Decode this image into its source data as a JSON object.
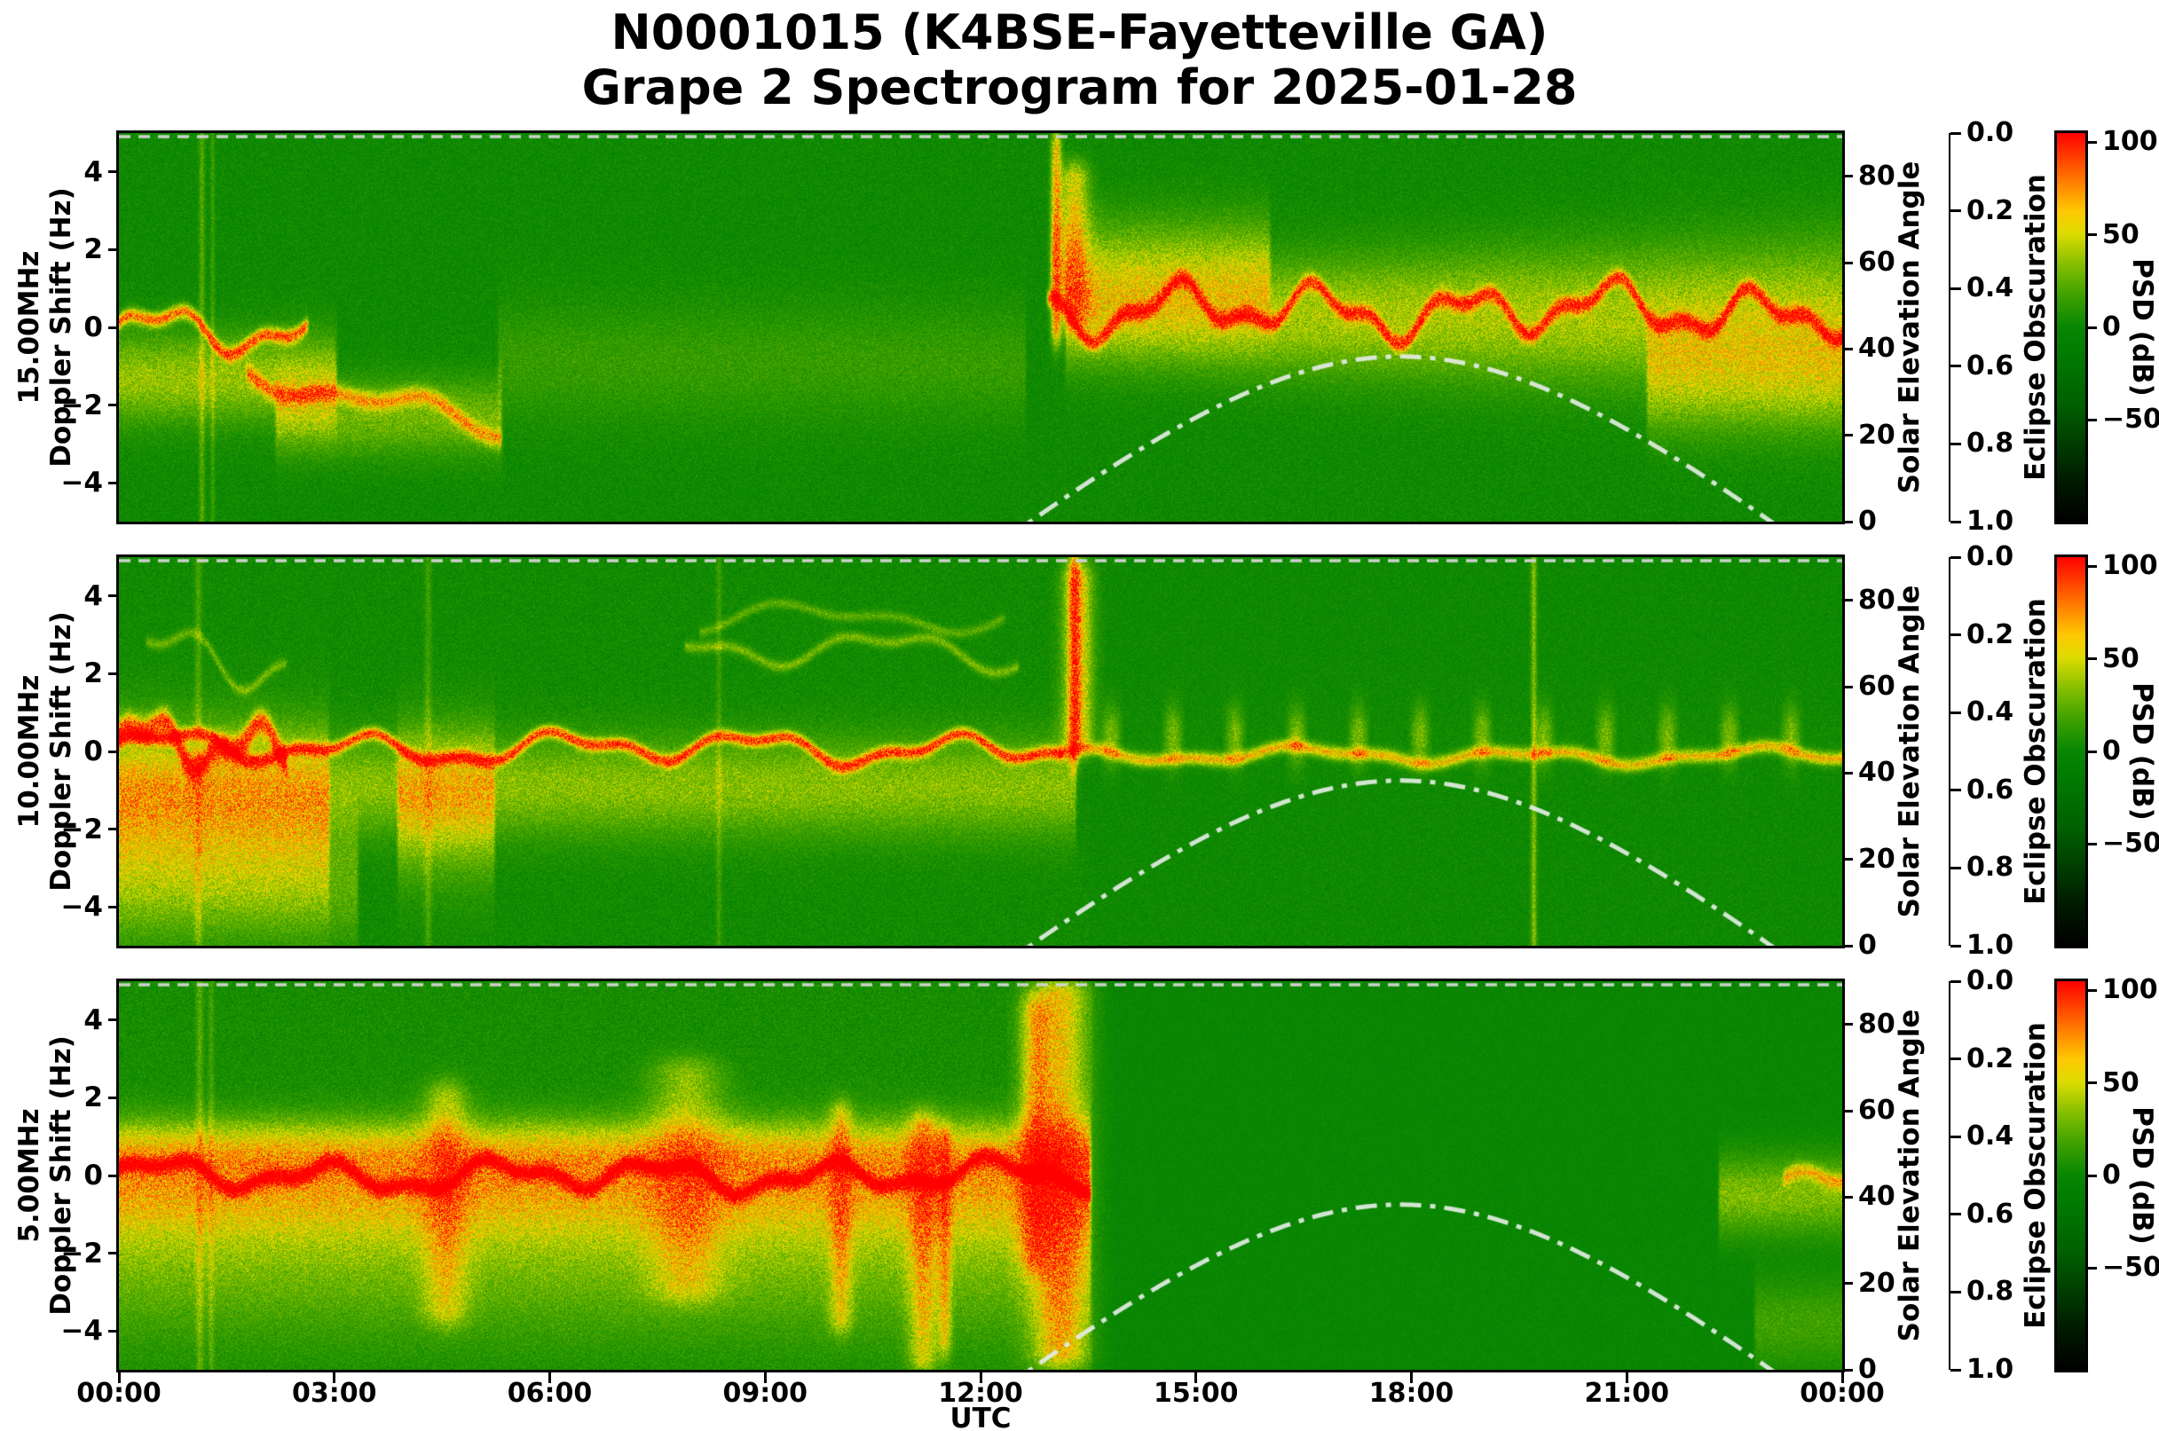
{
  "title": {
    "line1": "N0001015 (K4BSE-Fayetteville GA)",
    "line2": "Grape 2 Spectrogram for 2025-01-28"
  },
  "axes": {
    "x_label": "UTC",
    "x_tick_labels": [
      "00:00",
      "03:00",
      "06:00",
      "09:00",
      "12:00",
      "15:00",
      "18:00",
      "21:00",
      "00:00"
    ],
    "x_tick_hours": [
      0,
      3,
      6,
      9,
      12,
      15,
      18,
      21,
      24
    ],
    "doppler_tick_labels": [
      "4",
      "2",
      "0",
      "−2",
      "−4"
    ],
    "doppler_tick_values": [
      4,
      2,
      0,
      -2,
      -4
    ],
    "doppler_range_hz": [
      -5,
      5
    ],
    "solar_axis_label": "Solar Elevation Angle",
    "solar_tick_labels": [
      "0",
      "20",
      "40",
      "60",
      "80"
    ],
    "solar_tick_values": [
      0,
      20,
      40,
      60,
      80
    ],
    "solar_axis_range": [
      0,
      90
    ],
    "eclipse_axis_label": "Eclipse Obscuration",
    "eclipse_tick_labels": [
      "0.0",
      "0.2",
      "0.4",
      "0.6",
      "0.8",
      "1.0"
    ],
    "eclipse_axis_range": [
      0,
      1
    ],
    "colorbar_label": "PSD (dB)",
    "colorbar_tick_labels": [
      "100",
      "50",
      "0",
      "−50"
    ],
    "colorbar_tick_values": [
      100,
      50,
      0,
      -50
    ],
    "colorbar_range_db": [
      -105,
      105
    ]
  },
  "colors": {
    "background": "#ffffff",
    "axis": "#000000",
    "solar_curve": "rgba(226,236,226,0.93)",
    "eclipse_curve": "rgba(214,214,214,0.95)",
    "colormap_stops": [
      [
        0.0,
        "#000000"
      ],
      [
        0.1,
        "#001900"
      ],
      [
        0.2,
        "#003c00"
      ],
      [
        0.3,
        "#005f00"
      ],
      [
        0.42,
        "#007800"
      ],
      [
        0.5,
        "#088603"
      ],
      [
        0.58,
        "#3ca000"
      ],
      [
        0.66,
        "#82be00"
      ],
      [
        0.74,
        "#dcdc00"
      ],
      [
        0.8,
        "#ffc800"
      ],
      [
        0.87,
        "#ff8200"
      ],
      [
        0.94,
        "#ff3c00"
      ],
      [
        1.0,
        "#ff0000"
      ]
    ]
  },
  "chart_data": {
    "type": "heatmap",
    "title": "N0001015 (K4BSE-Fayetteville GA) Grape 2 Spectrogram for 2025-01-28",
    "xlabel": "UTC",
    "x_range_hours": [
      0,
      24
    ],
    "x_tick_labels": [
      "00:00",
      "03:00",
      "06:00",
      "09:00",
      "12:00",
      "15:00",
      "18:00",
      "21:00",
      "00:00"
    ],
    "colorbar": {
      "label": "PSD (dB)",
      "range_db": [
        -105,
        105
      ],
      "ticks": [
        100,
        50,
        0,
        -50
      ]
    },
    "solar_elevation": {
      "axis_label": "Solar Elevation Angle",
      "axis_range_deg": [
        0,
        90
      ],
      "style": "dash-dot",
      "peak_elevation_deg": 38,
      "peak_time_utc": 17.85,
      "rise_above_horizon_utc": 12.7,
      "set_below_horizon_utc": 23.0,
      "model": {
        "latitude_deg": 33.45,
        "solar_declination_deg": -18.3
      }
    },
    "eclipse_obscuration": {
      "axis_label": "Eclipse Obscuration",
      "axis_range": [
        0,
        1
      ],
      "value_all_day": 0.0,
      "style": "dashed-line-at-zero"
    },
    "panels": [
      {
        "id": "15mhz",
        "frequency_label": "15.00MHz",
        "ylabel": "Doppler Shift (Hz)",
        "ylim_hz": [
          -5,
          5
        ],
        "seed": 11,
        "background_psd_db": {
          "floor": 2,
          "speckle": 16
        },
        "description": "Night trace near 0 Hz drifting to -2.5 Hz from 00:00-05:00; quiet 05:00-12:30; sharp return ~13:00 with burst to +4 Hz, then persistent wavy carrier near +0.5 Hz with sidebands until 24:00.",
        "events": [
          {
            "kind": "carrier",
            "t": [
              0,
              2.6
            ],
            "f": -0.15,
            "wamp": 0.45,
            "wfreq": 2.8,
            "width": 0.13,
            "psd": 78
          },
          {
            "kind": "diffuse",
            "t": [
              0,
              3.0
            ],
            "f": -1.3,
            "width": 0.8,
            "psd": 36
          },
          {
            "kind": "carrier",
            "t": [
              1.8,
              5.3
            ],
            "f": -1.2,
            "drift": -0.38,
            "wamp": 0.3,
            "wfreq": 1.9,
            "width": 0.16,
            "psd": 50
          },
          {
            "kind": "diffuse",
            "t": [
              2.2,
              5.3
            ],
            "f": -2.3,
            "width": 0.7,
            "psd": 28
          },
          {
            "kind": "diffuse",
            "t": [
              5.3,
              12.6
            ],
            "f": -0.9,
            "width": 1.1,
            "psd": 13
          },
          {
            "kind": "plume",
            "tc": 13.05,
            "ts": 0.07,
            "f": [
              0,
              4.6
            ],
            "psd": 58
          },
          {
            "kind": "plume",
            "tc": 13.3,
            "ts": 0.2,
            "f": [
              0.5,
              3.8
            ],
            "psd": 48
          },
          {
            "kind": "carrier",
            "t": [
              12.95,
              24
            ],
            "f": 0.45,
            "wamp": 0.5,
            "wfreq": 3.1,
            "width": 0.14,
            "psd": 80
          },
          {
            "kind": "diffuse",
            "t": [
              13.2,
              24
            ],
            "f": 0.3,
            "width": 0.9,
            "psd": 40,
            "grow": 0.045
          },
          {
            "kind": "diffuse",
            "t": [
              13.0,
              16.0
            ],
            "f": 1.5,
            "width": 1.0,
            "psd": 30
          },
          {
            "kind": "diffuse",
            "t": [
              21.3,
              24
            ],
            "f": -1.3,
            "width": 1.0,
            "psd": 32
          },
          {
            "kind": "vline",
            "t": 1.15,
            "w": 0.04,
            "psd": 20
          },
          {
            "kind": "vline",
            "t": 1.3,
            "w": 0.03,
            "psd": 14
          }
        ]
      },
      {
        "id": "10mhz",
        "frequency_label": "10.00MHz",
        "ylabel": "Doppler Shift (Hz)",
        "ylim_hz": [
          -5,
          5
        ],
        "seed": 23,
        "background_psd_db": {
          "floor": 3,
          "speckle": 16,
          "split": 13.5,
          "floor2": 2,
          "speckle2": 13
        },
        "description": "Carrier near 0 Hz all night with broad spread down to -4 Hz before 03:00, faint harmonic traces at +2 to +3.5 Hz 08:00-12:30, strong burst to +4.5 Hz at ~13:20, weaker carrier with periodic bumps 14:00-24:00, narrow spike ~19:40.",
        "events": [
          {
            "kind": "carrier",
            "t": [
              0,
              13.1
            ],
            "f": 0.1,
            "wamp": 0.3,
            "wfreq": 2.3,
            "width": 0.11,
            "psd": 85
          },
          {
            "kind": "carrier",
            "t": [
              0,
              2.3
            ],
            "f": 0.15,
            "wamp": 0.5,
            "wfreq": 4.1,
            "width": 0.22,
            "psd": 80
          },
          {
            "kind": "diffuse",
            "t": [
              0,
              2.9
            ],
            "f": -1.6,
            "width": 1.5,
            "psd": 40
          },
          {
            "kind": "diffuse",
            "t": [
              0,
              13.3
            ],
            "f": -0.9,
            "width": 0.9,
            "psd": 32
          },
          {
            "kind": "diffuse",
            "t": [
              3.9,
              5.2
            ],
            "f": -1.4,
            "width": 1.3,
            "psd": 36
          },
          {
            "kind": "diffuse",
            "t": [
              0,
              3.3
            ],
            "f": -3.4,
            "width": 1.1,
            "psd": 22
          },
          {
            "kind": "carrier",
            "t": [
              7.9,
              12.5
            ],
            "f": 2.6,
            "wamp": 0.35,
            "wfreq": 1.9,
            "width": 0.1,
            "psd": 28
          },
          {
            "kind": "carrier",
            "t": [
              8.1,
              12.3
            ],
            "f": 3.4,
            "wamp": 0.3,
            "wfreq": 1.5,
            "width": 0.09,
            "psd": 22
          },
          {
            "kind": "carrier",
            "t": [
              0.4,
              2.3
            ],
            "f": 2.3,
            "wamp": 0.6,
            "wfreq": 2.5,
            "width": 0.1,
            "psd": 24
          },
          {
            "kind": "plume",
            "tc": 13.35,
            "ts": 0.2,
            "f": [
              0.5,
              4.4
            ],
            "psd": 60
          },
          {
            "kind": "plume",
            "tc": 13.3,
            "ts": 0.07,
            "f": [
              0,
              4.8
            ],
            "psd": 55
          },
          {
            "kind": "carrier",
            "t": [
              13.1,
              24
            ],
            "f": -0.1,
            "wamp": 0.15,
            "wfreq": 2.0,
            "width": 0.12,
            "psd": 60
          },
          {
            "kind": "diffuse",
            "t": [
              13.6,
              24
            ],
            "f": 0.4,
            "width": 0.55,
            "psd": 30,
            "patchy": 7.3
          },
          {
            "kind": "vline",
            "t": 19.7,
            "w": 0.04,
            "psd": 32
          },
          {
            "kind": "vline",
            "t": 1.1,
            "w": 0.05,
            "psd": 16
          },
          {
            "kind": "vline",
            "t": 4.3,
            "w": 0.05,
            "psd": 14
          },
          {
            "kind": "vline",
            "t": 8.35,
            "w": 0.04,
            "psd": 13
          }
        ]
      },
      {
        "id": "5mhz",
        "frequency_label": "5.00MHz",
        "ylabel": "Doppler Shift (Hz)",
        "ylim_hz": [
          -5,
          5
        ],
        "seed": 37,
        "background_psd_db": {
          "floor": 5,
          "speckle": 18,
          "split": 13.55,
          "floor2": 0,
          "speckle2": 9
        },
        "description": "Strong broad activity centered at 0 Hz from 00:00 to ~13:30 with repeated spreads to ±4 Hz (04:30, 08:00, 10:00, 11:15) and a full-band burst 12:45-13:30; abrupt daytime cutoff at 13:30 leaving smooth quiet background; weak activity returns after 22:20.",
        "events": [
          {
            "kind": "carrier",
            "t": [
              0,
              13.5
            ],
            "f": 0.0,
            "wamp": 0.3,
            "wfreq": 2.7,
            "width": 0.13,
            "psd": 92
          },
          {
            "kind": "diffuse",
            "t": [
              0,
              13.5
            ],
            "f": -0.4,
            "width": 0.9,
            "psd": 46
          },
          {
            "kind": "diffuse",
            "t": [
              0,
              13.5
            ],
            "f": 0.6,
            "width": 0.6,
            "psd": 38
          },
          {
            "kind": "diffuse",
            "t": [
              0,
              13.5
            ],
            "f": -2.2,
            "width": 1.4,
            "psd": 24
          },
          {
            "kind": "plume",
            "tc": 4.55,
            "ts": 0.3,
            "f": [
              -3.4,
              2.0
            ],
            "psd": 33
          },
          {
            "kind": "plume",
            "tc": 7.9,
            "ts": 0.5,
            "f": [
              -2.8,
              2.6
            ],
            "psd": 30
          },
          {
            "kind": "plume",
            "tc": 10.05,
            "ts": 0.15,
            "f": [
              -3.6,
              1.5
            ],
            "psd": 36
          },
          {
            "kind": "plume",
            "tc": 11.2,
            "ts": 0.2,
            "f": [
              -4.6,
              1.2
            ],
            "psd": 42
          },
          {
            "kind": "plume",
            "tc": 11.5,
            "ts": 0.09,
            "f": [
              -4.2,
              0.8
            ],
            "psd": 38
          },
          {
            "kind": "plume",
            "tc": 12.75,
            "ts": 0.2,
            "f": [
              -2.0,
              4.2
            ],
            "psd": 44
          },
          {
            "kind": "plume",
            "tc": 13.1,
            "ts": 0.38,
            "f": [
              -4.5,
              4.6
            ],
            "psd": 55
          },
          {
            "kind": "diffuse",
            "t": [
              22.3,
              24
            ],
            "f": -0.5,
            "width": 0.7,
            "psd": 33
          },
          {
            "kind": "carrier",
            "t": [
              23.2,
              24
            ],
            "f": -0.1,
            "wamp": 0.2,
            "wfreq": 3.0,
            "width": 0.15,
            "psd": 42
          },
          {
            "kind": "diffuse",
            "t": [
              22.8,
              24
            ],
            "f": -3.8,
            "width": 0.8,
            "psd": 18
          },
          {
            "kind": "vline",
            "t": 1.12,
            "w": 0.05,
            "psd": 18
          },
          {
            "kind": "vline",
            "t": 1.28,
            "w": 0.04,
            "psd": 13
          }
        ]
      }
    ]
  }
}
